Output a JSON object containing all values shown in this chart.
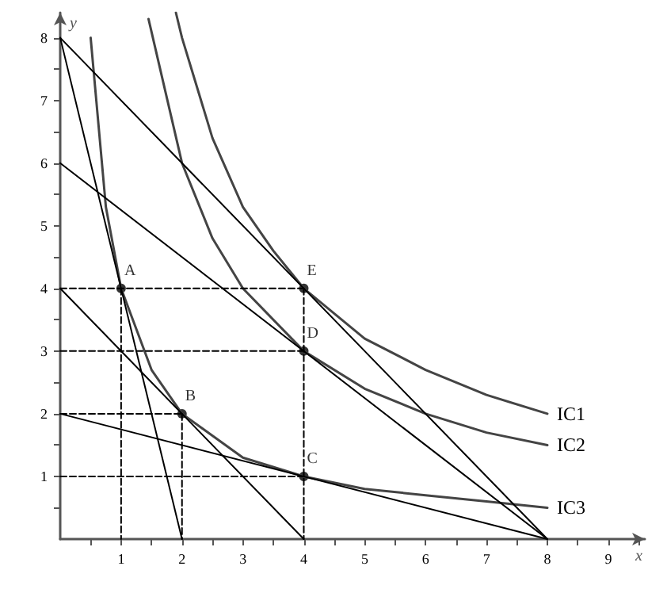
{
  "chart_data": {
    "type": "line",
    "xlabel": "x",
    "ylabel": "y",
    "xlim": [
      0,
      9.6
    ],
    "ylim": [
      0,
      8.4
    ],
    "xticks": [
      {
        "value": 0.5,
        "label": null
      },
      1,
      {
        "value": 1.5,
        "label": null
      },
      2,
      {
        "value": 2.5,
        "label": null
      },
      3,
      {
        "value": 3.5,
        "label": null
      },
      4,
      {
        "value": 4.5,
        "label": null
      },
      5,
      {
        "value": 5.5,
        "label": null
      },
      6,
      {
        "value": 6.5,
        "label": null
      },
      7,
      {
        "value": 7.5,
        "label": null
      },
      8,
      {
        "value": 8.5,
        "label": null
      },
      9,
      {
        "value": 9.5,
        "label": null
      }
    ],
    "yticks": [
      {
        "value": 0.5,
        "label": null
      },
      1,
      {
        "value": 1.5,
        "label": null
      },
      2,
      {
        "value": 2.5,
        "label": null
      },
      3,
      {
        "value": 3.5,
        "label": null
      },
      4,
      {
        "value": 4.5,
        "label": null
      },
      5,
      {
        "value": 5.5,
        "label": null
      },
      6,
      {
        "value": 6.5,
        "label": null
      },
      7,
      {
        "value": 7.5,
        "label": null
      },
      8
    ],
    "grid": false,
    "legend": false,
    "marker": "none",
    "line_style": "solid",
    "series": [
      {
        "name": "IC1",
        "color": "#444444",
        "x": [
          1.9,
          2,
          2.5,
          3,
          3.5,
          4,
          5,
          6,
          7,
          8
        ],
        "values": [
          8.4,
          8,
          6.4,
          5.3,
          4.6,
          4,
          3.2,
          2.7,
          2.3,
          2
        ]
      },
      {
        "name": "IC2",
        "color": "#444444",
        "x": [
          1.45,
          2,
          2.5,
          3,
          4,
          5,
          6,
          7,
          8
        ],
        "values": [
          8.3,
          6,
          4.8,
          4,
          3,
          2.4,
          2,
          1.7,
          1.5
        ]
      },
      {
        "name": "IC3",
        "color": "#444444",
        "x": [
          0.5,
          0.75,
          1,
          1.5,
          2,
          3,
          4,
          5,
          6,
          7,
          8
        ],
        "values": [
          8,
          5.3,
          4,
          2.7,
          2,
          1.3,
          1,
          0.8,
          0.7,
          0.6,
          0.5
        ]
      },
      {
        "color": "#000000",
        "x": [
          0,
          8
        ],
        "values": [
          8,
          0
        ]
      },
      {
        "color": "#000000",
        "x": [
          0,
          8
        ],
        "values": [
          6,
          0
        ]
      },
      {
        "color": "#000000",
        "x": [
          0,
          8
        ],
        "values": [
          2,
          0
        ]
      },
      {
        "color": "#000000",
        "x": [
          0,
          2
        ],
        "values": [
          8,
          0
        ]
      },
      {
        "color": "#000000",
        "x": [
          0,
          4
        ],
        "values": [
          4,
          0
        ]
      },
      {
        "color": "#000000",
        "line_style": "dashed",
        "x": [
          0,
          4
        ],
        "values": [
          4,
          4
        ]
      },
      {
        "color": "#000000",
        "line_style": "dashed",
        "x": [
          0,
          4
        ],
        "values": [
          3,
          3
        ]
      },
      {
        "color": "#000000",
        "line_style": "dashed",
        "x": [
          0,
          2
        ],
        "values": [
          2,
          2
        ]
      },
      {
        "color": "#000000",
        "line_style": "dashed",
        "x": [
          0,
          4
        ],
        "values": [
          1,
          1
        ]
      },
      {
        "color": "#000000",
        "line_style": "dashed",
        "x": [
          1,
          1
        ],
        "values": [
          4,
          0
        ]
      },
      {
        "color": "#000000",
        "line_style": "dashed",
        "x": [
          2,
          2
        ],
        "values": [
          2,
          0
        ]
      },
      {
        "color": "#000000",
        "line_style": "dashed",
        "x": [
          4,
          4
        ],
        "values": [
          4,
          0
        ]
      },
      {
        "type": "scatter",
        "marker": "circle",
        "color": "#000000",
        "x": [
          1,
          2,
          4,
          4,
          4
        ],
        "values": [
          4,
          2,
          1,
          3,
          4
        ],
        "value_labels": [
          "A",
          "B",
          "C",
          "D",
          "E"
        ]
      }
    ]
  }
}
